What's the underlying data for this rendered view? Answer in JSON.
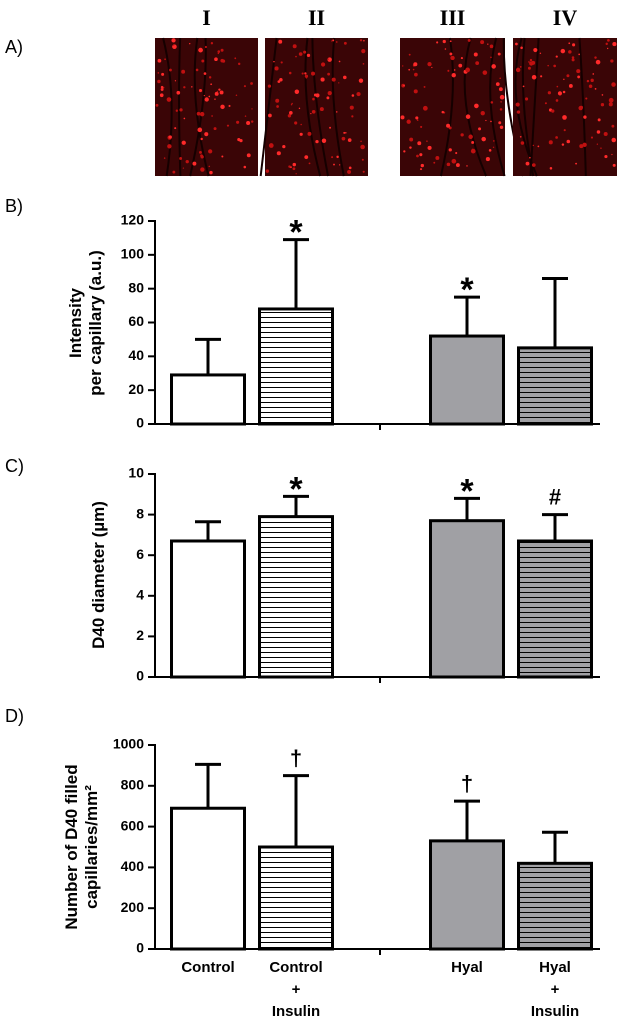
{
  "panel_a": {
    "label": "A)",
    "image_labels": [
      "I",
      "II",
      "III",
      "IV"
    ]
  },
  "chart_data": [
    {
      "type": "bar",
      "panel_label": "B)",
      "ylabel": "Intensity\nper capillary (a.u.)",
      "categories": [
        null,
        null,
        null,
        null
      ],
      "values": [
        29,
        68,
        52,
        45
      ],
      "errors": [
        21,
        41,
        23,
        41
      ],
      "colors": [
        "#ffffff",
        "#ffffff",
        "#a0a0a4",
        "#a0a0a4"
      ],
      "hatch": [
        false,
        true,
        false,
        true
      ],
      "annotations": [
        null,
        "*",
        "*",
        null
      ],
      "ylim": [
        0,
        120
      ],
      "yticks": [
        0,
        20,
        40,
        60,
        80,
        100,
        120
      ]
    },
    {
      "type": "bar",
      "panel_label": "C)",
      "ylabel": "D40 diameter (µm)",
      "categories": [
        null,
        null,
        null,
        null
      ],
      "values": [
        6.7,
        7.9,
        7.7,
        6.7
      ],
      "errors": [
        0.95,
        1.0,
        1.1,
        1.3
      ],
      "colors": [
        "#ffffff",
        "#ffffff",
        "#a0a0a4",
        "#a0a0a4"
      ],
      "hatch": [
        false,
        true,
        false,
        true
      ],
      "annotations": [
        null,
        "*",
        "*",
        "#"
      ],
      "ylim": [
        0,
        10
      ],
      "yticks": [
        0,
        2,
        4,
        6,
        8,
        10
      ]
    },
    {
      "type": "bar",
      "panel_label": "D)",
      "ylabel": "Number of D40 filled\ncapillaries/mm²",
      "categories": [
        "Control",
        "Control\n+\nInsulin",
        "Hyal",
        "Hyal\n+\nInsulin"
      ],
      "values": [
        690,
        500,
        530,
        420
      ],
      "errors": [
        215,
        350,
        195,
        152
      ],
      "colors": [
        "#ffffff",
        "#ffffff",
        "#a0a0a4",
        "#a0a0a4"
      ],
      "hatch": [
        false,
        true,
        false,
        true
      ],
      "annotations": [
        null,
        "†",
        "†",
        null
      ],
      "ylim": [
        0,
        1000
      ],
      "yticks": [
        0,
        200,
        400,
        600,
        800,
        1000
      ]
    }
  ]
}
